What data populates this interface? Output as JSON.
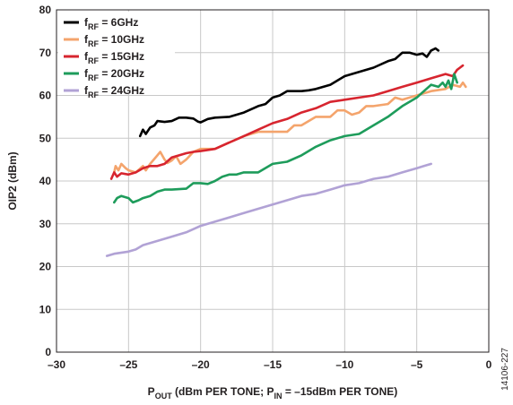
{
  "chart_data": {
    "type": "line",
    "xlabel_main": "P",
    "xlabel_sub": "OUT",
    "xlabel_mid": " (dBm PER TONE; P",
    "xlabel_sub2": "IN",
    "xlabel_end": " = –15dBm PER TONE)",
    "ylabel": "OIP2 (dBm)",
    "xlim": [
      -30,
      0
    ],
    "ylim": [
      0,
      80
    ],
    "xticks": [
      -30,
      -25,
      -20,
      -15,
      -10,
      -5,
      0
    ],
    "xtick_labels": [
      "–30",
      "–25",
      "–20",
      "–15",
      "–10",
      "–5",
      "0"
    ],
    "yticks": [
      0,
      10,
      20,
      30,
      40,
      50,
      60,
      70,
      80
    ],
    "ytick_labels": [
      "0",
      "10",
      "20",
      "30",
      "40",
      "50",
      "60",
      "70",
      "80"
    ],
    "grid": true,
    "legend_position": "top-left",
    "figure_id": "14106-227",
    "series": [
      {
        "legend_main": "f",
        "legend_sub": "RF",
        "legend_value": " = 6GHz",
        "color": "#000000",
        "points": [
          [
            -24.2,
            50.5
          ],
          [
            -24.0,
            52.0
          ],
          [
            -23.8,
            51.0
          ],
          [
            -23.5,
            52.5
          ],
          [
            -23.2,
            53.0
          ],
          [
            -23.0,
            54.0
          ],
          [
            -22.5,
            53.8
          ],
          [
            -22.0,
            54.0
          ],
          [
            -21.5,
            54.8
          ],
          [
            -21.0,
            54.8
          ],
          [
            -20.5,
            54.6
          ],
          [
            -20.2,
            53.9
          ],
          [
            -20.0,
            53.7
          ],
          [
            -19.5,
            54.5
          ],
          [
            -19.0,
            54.8
          ],
          [
            -18.0,
            55.0
          ],
          [
            -17.0,
            56.0
          ],
          [
            -16.0,
            57.5
          ],
          [
            -15.5,
            58.0
          ],
          [
            -15.0,
            59.5
          ],
          [
            -14.5,
            60.0
          ],
          [
            -14.0,
            61.0
          ],
          [
            -13.5,
            61.0
          ],
          [
            -13.0,
            61.0
          ],
          [
            -12.5,
            61.2
          ],
          [
            -12.0,
            61.5
          ],
          [
            -11.0,
            62.5
          ],
          [
            -10.0,
            64.5
          ],
          [
            -9.0,
            65.5
          ],
          [
            -8.0,
            66.5
          ],
          [
            -7.0,
            68.0
          ],
          [
            -6.5,
            68.5
          ],
          [
            -6.0,
            70.0
          ],
          [
            -5.5,
            70.0
          ],
          [
            -5.0,
            69.5
          ],
          [
            -4.6,
            69.8
          ],
          [
            -4.3,
            69.0
          ],
          [
            -4.0,
            70.5
          ],
          [
            -3.7,
            71.0
          ],
          [
            -3.5,
            70.5
          ]
        ]
      },
      {
        "legend_main": "f",
        "legend_sub": "RF",
        "legend_value": " = 10GHz",
        "color": "#f4a46c",
        "points": [
          [
            -26.0,
            42.0
          ],
          [
            -25.9,
            43.5
          ],
          [
            -25.7,
            42.5
          ],
          [
            -25.5,
            44.0
          ],
          [
            -25.2,
            43.0
          ],
          [
            -25.0,
            42.5
          ],
          [
            -24.5,
            42.0
          ],
          [
            -24.0,
            43.5
          ],
          [
            -23.8,
            42.5
          ],
          [
            -23.5,
            44.0
          ],
          [
            -23.0,
            46.0
          ],
          [
            -22.8,
            46.8
          ],
          [
            -22.5,
            45.0
          ],
          [
            -22.3,
            44.2
          ],
          [
            -22.0,
            44.8
          ],
          [
            -21.7,
            45.8
          ],
          [
            -21.4,
            44.0
          ],
          [
            -21.0,
            45.0
          ],
          [
            -20.5,
            46.8
          ],
          [
            -20.0,
            47.5
          ],
          [
            -19.0,
            47.5
          ],
          [
            -18.0,
            49.0
          ],
          [
            -17.0,
            50.5
          ],
          [
            -16.0,
            51.5
          ],
          [
            -15.0,
            51.5
          ],
          [
            -14.0,
            51.5
          ],
          [
            -13.5,
            53.0
          ],
          [
            -13.0,
            53.0
          ],
          [
            -12.0,
            55.0
          ],
          [
            -11.0,
            55.0
          ],
          [
            -10.5,
            56.5
          ],
          [
            -10.0,
            56.5
          ],
          [
            -9.5,
            55.5
          ],
          [
            -9.0,
            56.0
          ],
          [
            -8.5,
            57.5
          ],
          [
            -8.0,
            57.5
          ],
          [
            -7.0,
            58.0
          ],
          [
            -6.5,
            59.5
          ],
          [
            -6.0,
            59.0
          ],
          [
            -5.0,
            60.0
          ],
          [
            -4.0,
            61.0
          ],
          [
            -3.0,
            61.5
          ],
          [
            -2.5,
            62.5
          ],
          [
            -2.0,
            62.0
          ],
          [
            -1.8,
            63.0
          ],
          [
            -1.6,
            62.0
          ]
        ]
      },
      {
        "legend_main": "f",
        "legend_sub": "RF",
        "legend_value": " = 15GHz",
        "color": "#d7252f",
        "points": [
          [
            -26.2,
            40.5
          ],
          [
            -26.0,
            42.0
          ],
          [
            -25.8,
            41.0
          ],
          [
            -25.5,
            41.8
          ],
          [
            -25.0,
            41.5
          ],
          [
            -24.5,
            42.0
          ],
          [
            -24.0,
            43.0
          ],
          [
            -23.5,
            43.5
          ],
          [
            -23.0,
            43.5
          ],
          [
            -22.5,
            44.0
          ],
          [
            -22.0,
            45.5
          ],
          [
            -21.5,
            46.0
          ],
          [
            -21.0,
            46.5
          ],
          [
            -20.5,
            46.8
          ],
          [
            -20.0,
            47.0
          ],
          [
            -19.0,
            47.5
          ],
          [
            -18.0,
            49.0
          ],
          [
            -17.0,
            50.5
          ],
          [
            -16.0,
            52.0
          ],
          [
            -15.0,
            53.5
          ],
          [
            -14.0,
            54.5
          ],
          [
            -13.0,
            56.0
          ],
          [
            -12.0,
            57.0
          ],
          [
            -11.0,
            58.5
          ],
          [
            -10.0,
            59.0
          ],
          [
            -9.0,
            59.5
          ],
          [
            -8.0,
            60.0
          ],
          [
            -7.0,
            61.0
          ],
          [
            -6.0,
            62.0
          ],
          [
            -5.0,
            63.0
          ],
          [
            -4.0,
            64.0
          ],
          [
            -3.0,
            65.0
          ],
          [
            -2.5,
            64.5
          ],
          [
            -2.2,
            66.0
          ],
          [
            -2.0,
            66.5
          ],
          [
            -1.8,
            67.0
          ]
        ]
      },
      {
        "legend_main": "f",
        "legend_sub": "RF",
        "legend_value": " = 20GHz",
        "color": "#1e9c5b",
        "points": [
          [
            -26.0,
            35.0
          ],
          [
            -25.8,
            36.0
          ],
          [
            -25.5,
            36.5
          ],
          [
            -25.0,
            36.0
          ],
          [
            -24.7,
            35.0
          ],
          [
            -24.3,
            35.5
          ],
          [
            -24.0,
            36.0
          ],
          [
            -23.5,
            36.5
          ],
          [
            -23.0,
            37.5
          ],
          [
            -22.5,
            38.0
          ],
          [
            -22.0,
            38.0
          ],
          [
            -21.0,
            38.2
          ],
          [
            -20.5,
            39.5
          ],
          [
            -20.0,
            39.5
          ],
          [
            -19.5,
            39.3
          ],
          [
            -19.0,
            40.0
          ],
          [
            -18.5,
            41.0
          ],
          [
            -18.0,
            41.5
          ],
          [
            -17.5,
            41.5
          ],
          [
            -17.0,
            42.0
          ],
          [
            -16.5,
            42.0
          ],
          [
            -16.0,
            42.0
          ],
          [
            -15.0,
            44.0
          ],
          [
            -14.0,
            44.5
          ],
          [
            -13.0,
            46.0
          ],
          [
            -12.0,
            48.0
          ],
          [
            -11.0,
            49.5
          ],
          [
            -10.0,
            50.5
          ],
          [
            -9.0,
            51.0
          ],
          [
            -8.0,
            53.0
          ],
          [
            -7.0,
            55.0
          ],
          [
            -6.0,
            57.5
          ],
          [
            -5.0,
            59.5
          ],
          [
            -4.5,
            61.0
          ],
          [
            -4.0,
            62.5
          ],
          [
            -3.5,
            62.0
          ],
          [
            -3.2,
            63.0
          ],
          [
            -3.0,
            62.0
          ],
          [
            -2.8,
            63.5
          ],
          [
            -2.6,
            61.5
          ],
          [
            -2.4,
            65.0
          ],
          [
            -2.2,
            63.0
          ]
        ]
      },
      {
        "legend_main": "f",
        "legend_sub": "RF",
        "legend_value": " = 24GHz",
        "color": "#b1a2d5",
        "points": [
          [
            -26.5,
            22.5
          ],
          [
            -26.0,
            23.0
          ],
          [
            -25.0,
            23.5
          ],
          [
            -24.5,
            24.0
          ],
          [
            -24.0,
            25.0
          ],
          [
            -23.0,
            26.0
          ],
          [
            -22.0,
            27.0
          ],
          [
            -21.0,
            28.0
          ],
          [
            -20.0,
            29.5
          ],
          [
            -19.0,
            30.5
          ],
          [
            -18.0,
            31.5
          ],
          [
            -17.0,
            32.5
          ],
          [
            -16.0,
            33.5
          ],
          [
            -15.0,
            34.5
          ],
          [
            -14.0,
            35.5
          ],
          [
            -13.0,
            36.5
          ],
          [
            -12.0,
            37.0
          ],
          [
            -11.0,
            38.0
          ],
          [
            -10.0,
            39.0
          ],
          [
            -9.0,
            39.5
          ],
          [
            -8.0,
            40.5
          ],
          [
            -7.0,
            41.0
          ],
          [
            -6.0,
            42.0
          ],
          [
            -5.0,
            43.0
          ],
          [
            -4.5,
            43.5
          ],
          [
            -4.0,
            44.0
          ]
        ]
      }
    ]
  }
}
